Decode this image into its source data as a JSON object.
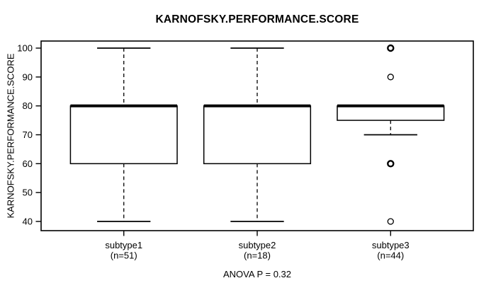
{
  "chart_data": {
    "type": "boxplot",
    "title": "KARNOFSKY.PERFORMANCE.SCORE",
    "ylabel": "KARNOFSKY.PERFORMANCE.SCORE",
    "xlabel": "",
    "annotation": "ANOVA P = 0.32",
    "ylim": [
      40,
      100
    ],
    "y_ticks": [
      40,
      50,
      60,
      70,
      80,
      90,
      100
    ],
    "grid": false,
    "legend": "none",
    "categories": [
      "subtype1",
      "subtype2",
      "subtype3"
    ],
    "groups": [
      {
        "label": "subtype1",
        "sublabel": "(n=51)",
        "q1": 60,
        "median": 80,
        "q3": 80,
        "whisker_low": 40,
        "whisker_high": 100,
        "outliers": []
      },
      {
        "label": "subtype2",
        "sublabel": "(n=18)",
        "q1": 60,
        "median": 80,
        "q3": 80,
        "whisker_low": 40,
        "whisker_high": 100,
        "outliers": []
      },
      {
        "label": "subtype3",
        "sublabel": "(n=44)",
        "q1": 75,
        "median": 80,
        "q3": 80,
        "whisker_low": 70,
        "whisker_high": 80,
        "outliers": [
          {
            "value": 100,
            "emphasis": true
          },
          {
            "value": 90,
            "emphasis": false
          },
          {
            "value": 60,
            "emphasis": true
          },
          {
            "value": 40,
            "emphasis": false
          }
        ]
      }
    ],
    "colors": {
      "line": "#000000",
      "box_fill": "#ffffff",
      "background": "#ffffff"
    }
  }
}
